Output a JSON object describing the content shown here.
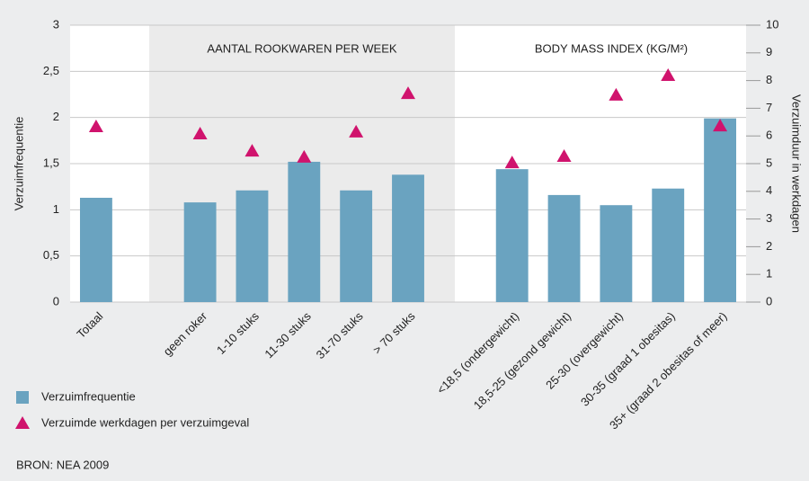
{
  "chart_data": {
    "type": "bar",
    "group_labels": [
      "AANTAL ROOKWAREN PER WEEK",
      "BODY MASS INDEX (KG/M²)"
    ],
    "categories": [
      "Totaal",
      null,
      "geen roker",
      "1-10 stuks",
      "11-30 stuks",
      "31-70 stuks",
      "> 70 stuks",
      null,
      "<18,5 (ondergewicht)",
      "18,5-25 (gezond gewicht)",
      "25-30 (overgewicht)",
      "30-35 (graad 1 obesitas)",
      "35+ (graad 2 obesitas of meer)"
    ],
    "series": [
      {
        "name": "Verzuimfrequentie",
        "type": "bar",
        "color": "#6aa3c0",
        "values": [
          1.13,
          null,
          1.08,
          1.21,
          1.52,
          1.21,
          1.38,
          null,
          1.44,
          1.16,
          1.05,
          1.23,
          1.99
        ]
      },
      {
        "name": "Verzuimde werkdagen per verzuimgeval",
        "type": "triangle",
        "axis": "y2",
        "color": "#d0136d",
        "values": [
          6.33,
          null,
          6.07,
          5.45,
          5.23,
          6.14,
          7.53,
          null,
          5.03,
          5.26,
          7.47,
          8.18,
          6.36
        ]
      }
    ],
    "ylabel": "Verzuimfrequentie",
    "y2label": "Verzuimduur in werkdagen",
    "ylim": [
      0,
      3
    ],
    "yticks": [
      0,
      {
        "value": 0.5,
        "label": "0,5"
      },
      1,
      {
        "value": 1.5,
        "label": "1,5"
      },
      2,
      {
        "value": 2.5,
        "label": "2,5"
      },
      3
    ],
    "y2lim": [
      0,
      10
    ],
    "y2ticks": [
      0,
      1,
      2,
      3,
      4,
      5,
      6,
      7,
      8,
      9,
      10
    ],
    "grid": true,
    "source": "BRON: NEA 2009"
  }
}
